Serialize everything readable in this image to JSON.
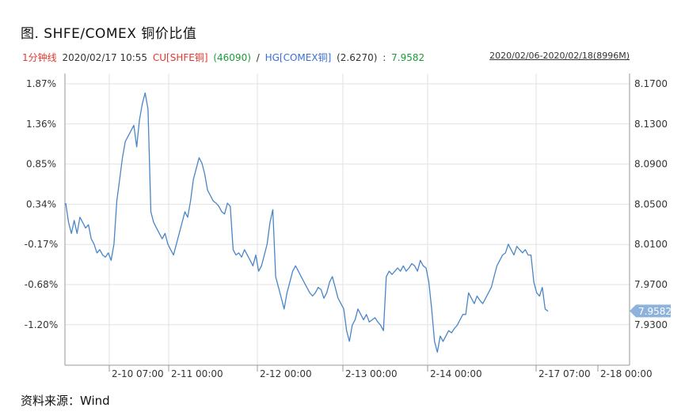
{
  "header": {
    "title": "图. SHFE/COMEX 铜价比值",
    "interval": "1分钟线",
    "datetime": "2020/02/17 10:55",
    "series1_label": "CU[SHFE铜]",
    "series1_value": "(46090)",
    "separator": "/",
    "series2_label": "HG[COMEX铜]",
    "series2_value": "(2.6270)",
    "ratio_sep": ":",
    "ratio_value": "7.9582",
    "range": "2020/02/06-2020/02/18(8996M)"
  },
  "footer": {
    "source": "资料来源：Wind"
  },
  "colors": {
    "line": "#4a86c5",
    "grid": "#e2e2e2",
    "axis": "#999999",
    "label_bg": "#8db3dc"
  },
  "chart_data": {
    "type": "line",
    "title": "",
    "left_axis_ticks": [
      "1.87%",
      "1.36%",
      "0.85%",
      "0.34%",
      "-0.17%",
      "-0.68%",
      "-1.20%"
    ],
    "right_axis_ticks": [
      "8.1700",
      "8.1300",
      "8.0900",
      "8.0500",
      "8.0100",
      "7.9700",
      "7.9300"
    ],
    "ylim": [
      7.908,
      8.178
    ],
    "x_ticks": [
      "2-10 07:00",
      "2-11 00:00",
      "2-12 00:00",
      "2-13 00:00",
      "2-14 00:00",
      "2-17 07:00",
      "2-18 00:00"
    ],
    "last_value_label": "7.9582",
    "series": [
      {
        "values": [
          8.058,
          8.04,
          8.03,
          8.042,
          8.03,
          8.045,
          8.04,
          8.035,
          8.038,
          8.025,
          8.02,
          8.012,
          8.015,
          8.01,
          8.008,
          8.012,
          8.005,
          8.02,
          8.06,
          8.08,
          8.1,
          8.115,
          8.12,
          8.125,
          8.13,
          8.11,
          8.135,
          8.15,
          8.16,
          8.145,
          8.05,
          8.04,
          8.035,
          8.03,
          8.025,
          8.03,
          8.02,
          8.015,
          8.01,
          8.02,
          8.03,
          8.04,
          8.05,
          8.045,
          8.06,
          8.08,
          8.09,
          8.1,
          8.095,
          8.085,
          8.07,
          8.065,
          8.06,
          8.058,
          8.055,
          8.05,
          8.048,
          8.058,
          8.055,
          8.015,
          8.01,
          8.012,
          8.008,
          8.015,
          8.01,
          8.005,
          8.0,
          8.01,
          7.995,
          8.0,
          8.01,
          8.02,
          8.04,
          8.052,
          7.99,
          7.98,
          7.97,
          7.96,
          7.975,
          7.985,
          7.995,
          8.0,
          7.995,
          7.99,
          7.985,
          7.98,
          7.975,
          7.972,
          7.975,
          7.98,
          7.978,
          7.97,
          7.975,
          7.985,
          7.99,
          7.98,
          7.97,
          7.965,
          7.96,
          7.94,
          7.93,
          7.945,
          7.95,
          7.96,
          7.955,
          7.95,
          7.955,
          7.948,
          7.95,
          7.952,
          7.948,
          7.945,
          7.94,
          7.99,
          7.995,
          7.992,
          7.995,
          7.998,
          7.995,
          8.0,
          7.995,
          7.998,
          8.002,
          8.0,
          7.995,
          8.005,
          8.0,
          7.998,
          7.985,
          7.96,
          7.93,
          7.92,
          7.935,
          7.93,
          7.935,
          7.94,
          7.938,
          7.942,
          7.945,
          7.95,
          7.955,
          7.955,
          7.975,
          7.97,
          7.965,
          7.972,
          7.968,
          7.965,
          7.97,
          7.975,
          7.98,
          7.99,
          8.0,
          8.005,
          8.01,
          8.012,
          8.02,
          8.015,
          8.01,
          8.018,
          8.015,
          8.012,
          8.015,
          8.01,
          8.01,
          7.985,
          7.975,
          7.972,
          7.98,
          7.96,
          7.958
        ]
      }
    ]
  }
}
